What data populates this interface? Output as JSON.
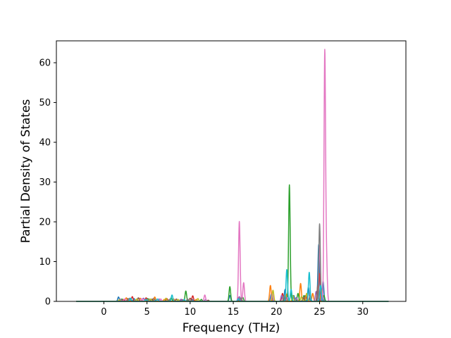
{
  "chart_data": {
    "type": "line",
    "title": "",
    "xlabel": "Frequency (THz)",
    "ylabel": "Partial Density of States",
    "xlim": [
      -5.5,
      35
    ],
    "ylim": [
      0,
      65.5
    ],
    "xticks": [
      0,
      5,
      10,
      15,
      20,
      25,
      30
    ],
    "yticks": [
      0,
      10,
      20,
      30,
      40,
      50,
      60
    ],
    "grid": false,
    "legend": "none",
    "baseline_range": [
      -3.2,
      33
    ],
    "series": [
      {
        "color": "#1f77b4",
        "peaks": [
          [
            1.7,
            1.1
          ],
          [
            3.5,
            0.7
          ],
          [
            5.8,
            0.8
          ],
          [
            9.0,
            0.5
          ],
          [
            10.2,
            0.6
          ],
          [
            14.6,
            1.5
          ],
          [
            19.4,
            1.8
          ],
          [
            21.0,
            3.0
          ],
          [
            22.0,
            1.5
          ],
          [
            23.7,
            3.5
          ],
          [
            24.9,
            14.3
          ],
          [
            25.4,
            5.0
          ]
        ]
      },
      {
        "color": "#ff7f0e",
        "peaks": [
          [
            2.6,
            0.9
          ],
          [
            4.2,
            0.8
          ],
          [
            5.9,
            1.1
          ],
          [
            7.0,
            0.5
          ],
          [
            8.1,
            0.6
          ],
          [
            10.7,
            0.5
          ],
          [
            15.6,
            1.0
          ],
          [
            19.3,
            4.0
          ],
          [
            21.2,
            1.8
          ],
          [
            22.8,
            4.5
          ],
          [
            24.2,
            2.0
          ],
          [
            25.2,
            3.0
          ]
        ]
      },
      {
        "color": "#2ca02c",
        "peaks": [
          [
            2.1,
            0.6
          ],
          [
            5.1,
            0.7
          ],
          [
            7.8,
            0.9
          ],
          [
            9.5,
            2.6
          ],
          [
            11.3,
            0.5
          ],
          [
            14.6,
            3.7
          ],
          [
            16.1,
            1.0
          ],
          [
            21.5,
            29.3
          ],
          [
            22.5,
            2.0
          ],
          [
            23.2,
            1.5
          ],
          [
            25.5,
            1.5
          ]
        ]
      },
      {
        "color": "#d62728",
        "peaks": [
          [
            2.3,
            0.5
          ],
          [
            3.3,
            1.2
          ],
          [
            4.9,
            0.9
          ],
          [
            7.3,
            0.7
          ],
          [
            9.1,
            0.4
          ],
          [
            10.3,
            1.4
          ],
          [
            15.8,
            0.8
          ],
          [
            20.7,
            2.0
          ],
          [
            23.4,
            1.5
          ],
          [
            25.0,
            7.0
          ]
        ]
      },
      {
        "color": "#9467bd",
        "peaks": [
          [
            1.9,
            0.6
          ],
          [
            4.6,
            0.8
          ],
          [
            6.4,
            0.6
          ],
          [
            8.9,
            0.5
          ],
          [
            11.8,
            0.5
          ],
          [
            15.7,
            1.2
          ],
          [
            20.6,
            1.5
          ],
          [
            22.3,
            1.0
          ],
          [
            24.6,
            2.5
          ],
          [
            25.3,
            2.0
          ]
        ]
      },
      {
        "color": "#8c564b",
        "peaks": [
          [
            2.8,
            0.7
          ],
          [
            4.0,
            0.9
          ],
          [
            5.6,
            0.6
          ],
          [
            8.4,
            0.6
          ],
          [
            10.0,
            0.8
          ],
          [
            12.1,
            0.3
          ],
          [
            21.0,
            1.2
          ],
          [
            23.1,
            1.0
          ],
          [
            24.8,
            4.0
          ]
        ]
      },
      {
        "color": "#e377c2",
        "peaks": [
          [
            2.4,
            0.6
          ],
          [
            4.4,
            0.7
          ],
          [
            6.6,
            0.6
          ],
          [
            11.7,
            1.6
          ],
          [
            15.7,
            20.1
          ],
          [
            16.2,
            4.7
          ],
          [
            19.5,
            2.0
          ],
          [
            21.3,
            1.0
          ],
          [
            25.0,
            14.0
          ],
          [
            25.6,
            62.5
          ],
          [
            25.8,
            10.0
          ]
        ]
      },
      {
        "color": "#7f7f7f",
        "peaks": [
          [
            3.0,
            0.8
          ],
          [
            5.3,
            0.6
          ],
          [
            7.6,
            0.5
          ],
          [
            9.7,
            0.6
          ],
          [
            15.9,
            0.9
          ],
          [
            20.9,
            1.5
          ],
          [
            23.9,
            1.5
          ],
          [
            25.0,
            19.5
          ]
        ]
      },
      {
        "color": "#bcbd22",
        "peaks": [
          [
            1.8,
            0.4
          ],
          [
            3.8,
            0.6
          ],
          [
            5.4,
            0.6
          ],
          [
            7.2,
            0.8
          ],
          [
            8.6,
            0.5
          ],
          [
            10.9,
            0.7
          ],
          [
            19.6,
            2.8
          ],
          [
            21.9,
            1.5
          ],
          [
            22.9,
            1.2
          ],
          [
            23.5,
            2.0
          ]
        ]
      },
      {
        "color": "#17becf",
        "peaks": [
          [
            3.1,
            0.8
          ],
          [
            4.9,
            0.5
          ],
          [
            6.2,
            0.6
          ],
          [
            7.9,
            1.6
          ],
          [
            9.3,
            0.5
          ],
          [
            15.6,
            0.7
          ],
          [
            21.2,
            8.0
          ],
          [
            21.7,
            3.0
          ],
          [
            23.8,
            7.3
          ],
          [
            25.1,
            4.0
          ]
        ]
      }
    ]
  }
}
